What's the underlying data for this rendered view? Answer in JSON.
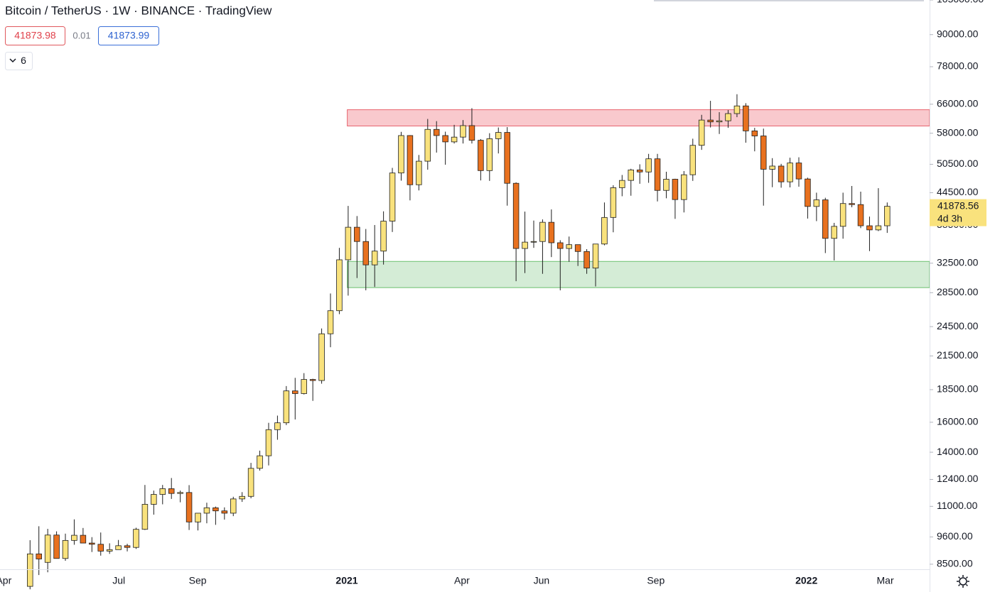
{
  "header": {
    "title": "Bitcoin / TetherUS · 1W · BINANCE · TradingView",
    "bid": "41873.98",
    "spread": "0.01",
    "ask": "41873.99",
    "indicators": "6"
  },
  "chart_data": {
    "type": "candlestick",
    "log_scale": true,
    "up_color": "#f9e27d",
    "down_color": "#e8711f",
    "wick_color": "#1e1e1e",
    "open": [
      7700,
      8900,
      8570,
      9680,
      8720,
      9450,
      9670,
      9340,
      9290,
      9010,
      9070,
      9230,
      9160,
      9930,
      11100,
      11600,
      11900,
      11650,
      11700,
      10260,
      10670,
      10930,
      10780,
      10670,
      11370,
      11500,
      13030,
      13780,
      15480,
      15960,
      18400,
      18180,
      19360,
      19270,
      23730,
      26300,
      33000,
      38150,
      35800,
      32260,
      34300,
      39200,
      48580,
      57400,
      46100,
      51200,
      59000,
      57400,
      55800,
      57000,
      60000,
      56200,
      49100,
      56600,
      58200,
      46400,
      34700,
      35700,
      35800,
      39000,
      35600,
      34700,
      35300,
      34240,
      31800,
      35400,
      39850,
      45500,
      47000,
      49250,
      48800,
      51750,
      44950,
      47250,
      43150,
      48200,
      54950,
      61500,
      61000,
      61300,
      63300,
      65500,
      58600,
      57300,
      49400,
      50100,
      46700,
      50800,
      47300,
      41850,
      43100,
      36300,
      38300,
      42400,
      42200,
      38400,
      37700,
      38400
    ],
    "high": [
      9460,
      10067,
      9950,
      9840,
      9740,
      10380,
      9990,
      9590,
      9790,
      9330,
      9470,
      9310,
      10000,
      12100,
      11800,
      12100,
      12480,
      11800,
      12090,
      10600,
      11180,
      10990,
      10950,
      11480,
      11720,
      13350,
      14100,
      15960,
      16480,
      18800,
      19500,
      19915,
      19420,
      24300,
      28400,
      34800,
      41950,
      40100,
      37850,
      38530,
      40950,
      49700,
      58350,
      57500,
      52640,
      61800,
      61200,
      58400,
      60200,
      61500,
      64850,
      56500,
      58000,
      59500,
      59600,
      46600,
      40900,
      39300,
      39500,
      41300,
      36000,
      36600,
      35300,
      34600,
      35400,
      42600,
      46000,
      48150,
      49500,
      50500,
      52900,
      52900,
      48850,
      47350,
      49000,
      56600,
      62950,
      67000,
      63700,
      64300,
      69000,
      66300,
      59400,
      59200,
      51900,
      50600,
      52000,
      52100,
      47570,
      44500,
      43500,
      38900,
      44500,
      45850,
      44700,
      40000,
      45400,
      42600
    ],
    "low": [
      7600,
      8100,
      8200,
      8800,
      8630,
      9270,
      9380,
      8975,
      8830,
      8900,
      9120,
      9000,
      9100,
      9900,
      10600,
      11100,
      11370,
      11200,
      9900,
      9880,
      10200,
      10130,
      10370,
      10530,
      11220,
      11400,
      12900,
      13200,
      14800,
      15800,
      16200,
      18110,
      17600,
      19000,
      22350,
      25900,
      28130,
      30420,
      28800,
      29240,
      32300,
      37350,
      46950,
      43000,
      44950,
      49300,
      53200,
      50400,
      55400,
      55400,
      55400,
      47000,
      46900,
      53000,
      42000,
      30000,
      31100,
      34800,
      31000,
      33400,
      28800,
      32700,
      32100,
      31000,
      29300,
      35200,
      37300,
      43800,
      43900,
      46300,
      46500,
      42800,
      43400,
      39600,
      40750,
      46900,
      53850,
      59500,
      57800,
      59400,
      62300,
      55600,
      53500,
      42000,
      45600,
      45500,
      45560,
      45700,
      39650,
      39200,
      34000,
      32900,
      36250,
      41700,
      38000,
      34300,
      37500,
      37200
    ],
    "close": [
      8900,
      8700,
      9680,
      8720,
      9450,
      9670,
      9340,
      9290,
      9010,
      9070,
      9230,
      9160,
      9930,
      11100,
      11600,
      11900,
      11650,
      11700,
      10260,
      10670,
      10930,
      10780,
      10670,
      11370,
      11500,
      13030,
      13780,
      15480,
      15960,
      18400,
      18180,
      19360,
      19270,
      23730,
      26300,
      33000,
      38150,
      35800,
      32260,
      34300,
      39200,
      48580,
      57400,
      46100,
      51200,
      59000,
      57400,
      55800,
      57000,
      60000,
      56200,
      49100,
      56600,
      58200,
      46400,
      34700,
      35700,
      35800,
      39000,
      35600,
      34700,
      35300,
      34240,
      31800,
      35400,
      39850,
      45500,
      47000,
      49250,
      48800,
      51750,
      44950,
      47250,
      43150,
      48200,
      54950,
      61500,
      61000,
      61300,
      63300,
      65500,
      58600,
      57300,
      49400,
      50100,
      46700,
      50800,
      47300,
      41850,
      43100,
      36300,
      38300,
      42400,
      42200,
      38400,
      37700,
      38400,
      41878.56
    ],
    "last_price": {
      "value": 41878.56,
      "label": "41878.56",
      "countdown": "4d 3h"
    },
    "zones": [
      {
        "from": 35.9,
        "low": 59900,
        "high": 64400,
        "fill": "#f9c9cd",
        "stroke": "#e8646e"
      },
      {
        "from": 35.9,
        "low": 29150,
        "high": 32760,
        "fill": "#d4ecd6",
        "stroke": "#6cc070"
      }
    ],
    "xlim": [
      -3.4,
      101.8
    ],
    "xticks": [
      {
        "value": -2.97,
        "label": "Apr"
      },
      {
        "value": 10.05,
        "label": "Jul"
      },
      {
        "value": 18.97,
        "label": "Sep"
      },
      {
        "value": 35.85,
        "label": "2021"
      },
      {
        "value": 48.87,
        "label": "Apr"
      },
      {
        "value": 57.88,
        "label": "Jun"
      },
      {
        "value": 70.82,
        "label": "Sep"
      },
      {
        "value": 87.86,
        "label": "2022"
      },
      {
        "value": 96.78,
        "label": "Mar"
      }
    ],
    "ylim": [
      8310,
      105000
    ],
    "yticks": [
      {
        "value": 8500,
        "label": "8500.00"
      },
      {
        "value": 9600,
        "label": "9600.00"
      },
      {
        "value": 11000,
        "label": "11000.00"
      },
      {
        "value": 12400,
        "label": "12400.00"
      },
      {
        "value": 14000,
        "label": "14000.00"
      },
      {
        "value": 16000,
        "label": "16000.00"
      },
      {
        "value": 18500,
        "label": "18500.00"
      },
      {
        "value": 21500,
        "label": "21500.00"
      },
      {
        "value": 24500,
        "label": "24500.00"
      },
      {
        "value": 28500,
        "label": "28500.00"
      },
      {
        "value": 32500,
        "label": "32500.00"
      },
      {
        "value": 38500,
        "label": "38500.00"
      },
      {
        "value": 44500,
        "label": "44500.00"
      },
      {
        "value": 50500,
        "label": "50500.00"
      },
      {
        "value": 58000,
        "label": "58000.00"
      },
      {
        "value": 66000,
        "label": "66000.00"
      },
      {
        "value": 78000,
        "label": "78000.00"
      },
      {
        "value": 90000,
        "label": "90000.00"
      },
      {
        "value": 105000,
        "label": "105000.00"
      }
    ]
  }
}
